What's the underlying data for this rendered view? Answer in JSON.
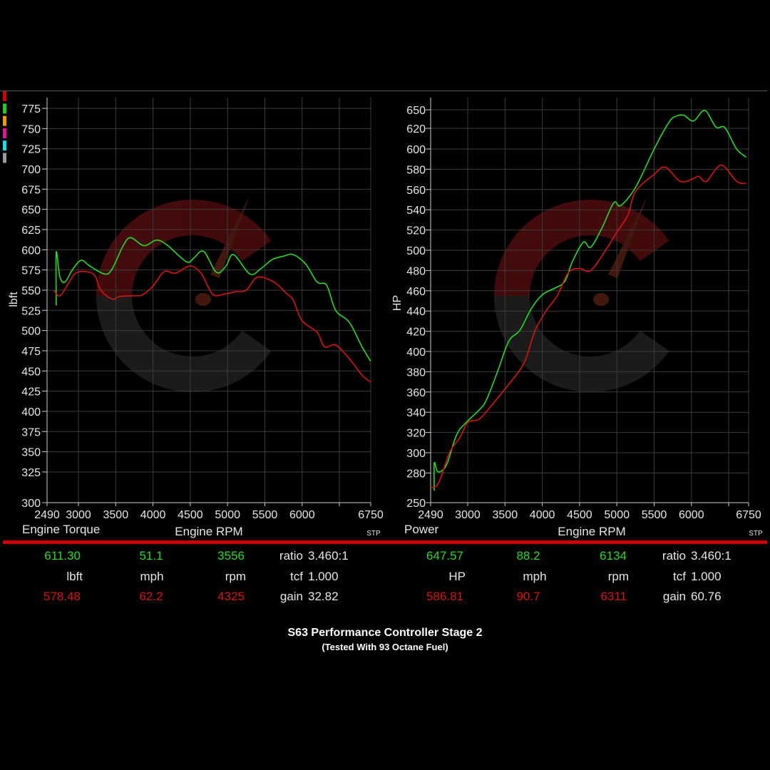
{
  "legend_colors": [
    "#d40000",
    "#22cc22",
    "#f29a00",
    "#e0139b",
    "#12e0e6",
    "#9a9a9a"
  ],
  "colors": {
    "after": "#22dd22",
    "before": "#dd1111",
    "separator": "#cc0000",
    "grid": "#3c3c3c"
  },
  "chart_data": [
    {
      "type": "line",
      "title": "Engine Torque",
      "xlabel": "Engine RPM",
      "ylabel": "lbft",
      "corner_label": "STP",
      "xlim": [
        2490,
        6750
      ],
      "ylim": [
        300,
        775
      ],
      "grid": true,
      "x_ticks": [
        2490,
        3000,
        3500,
        4000,
        4500,
        5000,
        5500,
        6000,
        6500,
        6750
      ],
      "x_tick_labels": [
        "2490",
        "3000",
        "3500",
        "4000",
        "4500",
        "5000",
        "5500",
        "6000",
        "",
        "6750"
      ],
      "y_ticks": [
        300,
        325,
        350,
        375,
        400,
        425,
        450,
        475,
        500,
        525,
        550,
        575,
        600,
        625,
        650,
        675,
        700,
        725,
        750,
        775
      ],
      "series": [
        {
          "color": "#22dd22",
          "points": [
            [
              2640,
              531
            ],
            [
              2640,
              597
            ],
            [
              2700,
              566
            ],
            [
              2784,
              560
            ],
            [
              2900,
              575
            ],
            [
              3036,
              587
            ],
            [
              3150,
              580
            ],
            [
              3350,
              570
            ],
            [
              3450,
              576
            ],
            [
              3600,
              605
            ],
            [
              3700,
              615
            ],
            [
              3880,
              605
            ],
            [
              4050,
              612
            ],
            [
              4200,
              605
            ],
            [
              4450,
              585
            ],
            [
              4550,
              590
            ],
            [
              4680,
              598
            ],
            [
              4850,
              572
            ],
            [
              4980,
              580
            ],
            [
              5080,
              594
            ],
            [
              5300,
              570
            ],
            [
              5450,
              577
            ],
            [
              5600,
              588
            ],
            [
              5750,
              592
            ],
            [
              5880,
              594
            ],
            [
              6050,
              582
            ],
            [
              6200,
              560
            ],
            [
              6330,
              556
            ],
            [
              6450,
              525
            ],
            [
              6580,
              510
            ],
            [
              6680,
              480
            ],
            [
              6750,
              462
            ]
          ]
        },
        {
          "color": "#dd1111",
          "points": [
            [
              2600,
              550
            ],
            [
              2700,
              543
            ],
            [
              2850,
              560
            ],
            [
              2980,
              572
            ],
            [
              3200,
              570
            ],
            [
              3300,
              550
            ],
            [
              3450,
              539
            ],
            [
              3550,
              542
            ],
            [
              3700,
              543
            ],
            [
              3850,
              544
            ],
            [
              4000,
              555
            ],
            [
              4150,
              573
            ],
            [
              4300,
              571
            ],
            [
              4500,
              580
            ],
            [
              4650,
              570
            ],
            [
              4800,
              545
            ],
            [
              4950,
              545
            ],
            [
              5100,
              548
            ],
            [
              5250,
              550
            ],
            [
              5400,
              566
            ],
            [
              5620,
              560
            ],
            [
              5800,
              545
            ],
            [
              5880,
              538
            ],
            [
              6000,
              512
            ],
            [
              6200,
              498
            ],
            [
              6300,
              480
            ],
            [
              6450,
              482
            ],
            [
              6580,
              465
            ],
            [
              6680,
              445
            ],
            [
              6750,
              436
            ]
          ]
        }
      ]
    },
    {
      "type": "line",
      "title": "Power",
      "xlabel": "Engine RPM",
      "ylabel": "HP",
      "corner_label": "STP",
      "xlim": [
        2490,
        6750
      ],
      "ylim": [
        250,
        650
      ],
      "grid": true,
      "x_ticks": [
        2490,
        3000,
        3500,
        4000,
        4500,
        5000,
        5500,
        6000,
        6500,
        6750
      ],
      "x_tick_labels": [
        "2490",
        "3000",
        "3500",
        "4000",
        "4500",
        "5000",
        "5500",
        "6000",
        "",
        "6750"
      ],
      "y_ticks": [
        250,
        280,
        300,
        320,
        340,
        360,
        380,
        400,
        420,
        440,
        460,
        480,
        500,
        520,
        540,
        560,
        580,
        600,
        620,
        650
      ],
      "series": [
        {
          "color": "#22dd22",
          "points": [
            [
              2540,
              262
            ],
            [
              2540,
              290
            ],
            [
              2580,
              282
            ],
            [
              2640,
              282
            ],
            [
              2720,
              290
            ],
            [
              2850,
              318
            ],
            [
              2980,
              330
            ],
            [
              3150,
              342
            ],
            [
              3250,
              352
            ],
            [
              3400,
              380
            ],
            [
              3550,
              410
            ],
            [
              3700,
              421
            ],
            [
              3850,
              442
            ],
            [
              4000,
              456
            ],
            [
              4150,
              462
            ],
            [
              4300,
              469
            ],
            [
              4400,
              488
            ],
            [
              4550,
              508
            ],
            [
              4650,
              503
            ],
            [
              4800,
              522
            ],
            [
              4960,
              547
            ],
            [
              5050,
              544
            ],
            [
              5250,
              562
            ],
            [
              5500,
              600
            ],
            [
              5700,
              630
            ],
            [
              5800,
              640
            ],
            [
              5900,
              641
            ],
            [
              6030,
              632
            ],
            [
              6180,
              649
            ],
            [
              6330,
              622
            ],
            [
              6450,
              621
            ],
            [
              6600,
              600
            ],
            [
              6720,
              592
            ]
          ]
        },
        {
          "color": "#dd1111",
          "points": [
            [
              2490,
              265
            ],
            [
              2600,
              270
            ],
            [
              2750,
              300
            ],
            [
              2900,
              316
            ],
            [
              3000,
              330
            ],
            [
              3150,
              333
            ],
            [
              3300,
              345
            ],
            [
              3500,
              363
            ],
            [
              3750,
              388
            ],
            [
              3900,
              420
            ],
            [
              4050,
              440
            ],
            [
              4200,
              455
            ],
            [
              4350,
              478
            ],
            [
              4500,
              482
            ],
            [
              4650,
              480
            ],
            [
              4850,
              500
            ],
            [
              5000,
              518
            ],
            [
              5150,
              535
            ],
            [
              5250,
              558
            ],
            [
              5500,
              575
            ],
            [
              5650,
              582
            ],
            [
              5850,
              568
            ],
            [
              6000,
              570
            ],
            [
              6100,
              573
            ],
            [
              6200,
              568
            ],
            [
              6400,
              584
            ],
            [
              6600,
              568
            ],
            [
              6720,
              566
            ]
          ]
        }
      ]
    }
  ],
  "stats": {
    "left": {
      "after": {
        "value": "611.30",
        "mph": "51.1",
        "rpm": "3556"
      },
      "units": {
        "value": "lbft",
        "mph": "mph",
        "rpm": "rpm"
      },
      "before": {
        "value": "578.48",
        "mph": "62.2",
        "rpm": "4325"
      },
      "info": [
        {
          "label": "ratio",
          "value": "3.460:1"
        },
        {
          "label": "tcf",
          "value": "1.000"
        },
        {
          "label": "gain",
          "value": "32.82"
        }
      ]
    },
    "right": {
      "after": {
        "value": "647.57",
        "mph": "88.2",
        "rpm": "6134"
      },
      "units": {
        "value": "HP",
        "mph": "mph",
        "rpm": "rpm"
      },
      "before": {
        "value": "586.81",
        "mph": "90.7",
        "rpm": "6311"
      },
      "info": [
        {
          "label": "ratio",
          "value": "3.460:1"
        },
        {
          "label": "tcf",
          "value": "1.000"
        },
        {
          "label": "gain",
          "value": "60.76"
        }
      ]
    }
  },
  "footer": {
    "title": "S63 Performance Controller Stage 2",
    "subtitle": "(Tested With 93 Octane Fuel)"
  }
}
